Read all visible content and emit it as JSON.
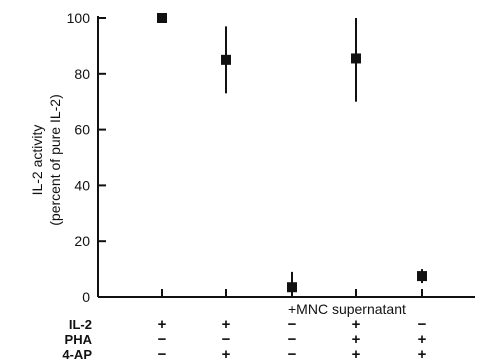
{
  "chart_data": {
    "type": "scatter",
    "title": "",
    "xlabel": "",
    "ylabel": [
      "IL-2 activity",
      "(percent of pure IL-2)"
    ],
    "ylim": [
      0,
      100
    ],
    "yticks": [
      0,
      20,
      40,
      60,
      80,
      100
    ],
    "grid": false,
    "points": [
      {
        "y": 100,
        "err_low": 100,
        "err_high": 100
      },
      {
        "y": 85,
        "err_low": 73,
        "err_high": 97
      },
      {
        "y": 3.5,
        "err_low": 0,
        "err_high": 9
      },
      {
        "y": 85.5,
        "err_low": 70,
        "err_high": 100
      },
      {
        "y": 7.5,
        "err_low": 5,
        "err_high": 10
      }
    ],
    "annotation": "+MNC supernatant",
    "conditions": [
      {
        "label": "IL-2",
        "signs": [
          "+",
          "+",
          "−",
          "+",
          "−"
        ]
      },
      {
        "label": "PHA",
        "signs": [
          "−",
          "−",
          "−",
          "+",
          "+"
        ]
      },
      {
        "label": "4-AP",
        "signs": [
          "−",
          "+",
          "−",
          "+",
          "+"
        ]
      }
    ]
  }
}
